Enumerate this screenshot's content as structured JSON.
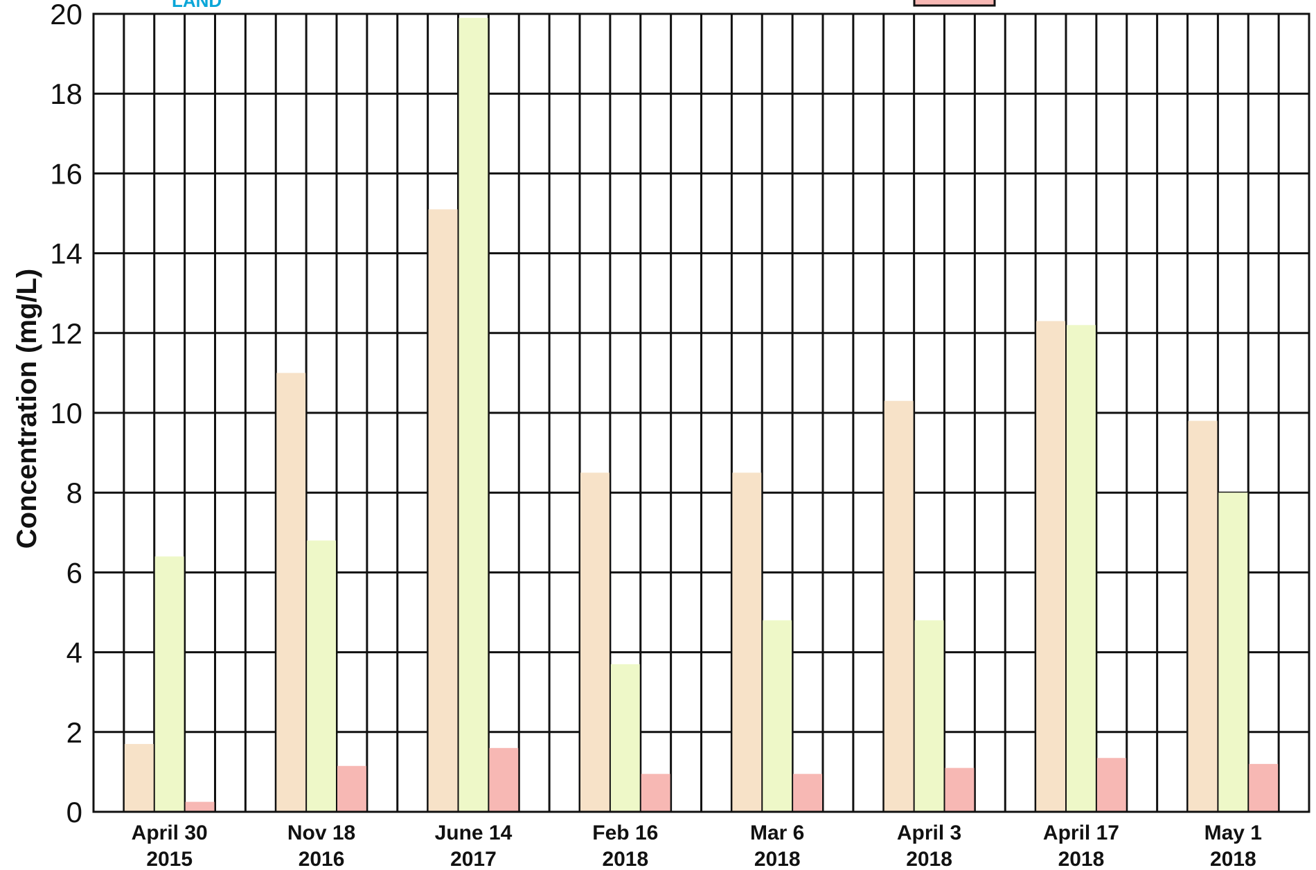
{
  "chart_data": {
    "type": "bar",
    "ylabel": "Concentration (mg/L)",
    "ylim": [
      0,
      20
    ],
    "y_ticks": [
      0,
      2,
      4,
      6,
      8,
      10,
      12,
      14,
      16,
      18,
      20
    ],
    "grid": true,
    "categories": [
      [
        "April 30",
        "2015"
      ],
      [
        "Nov 18",
        "2016"
      ],
      [
        "June 14",
        "2017"
      ],
      [
        "Feb 16",
        "2018"
      ],
      [
        "Mar 6",
        "2018"
      ],
      [
        "April 3",
        "2018"
      ],
      [
        "April 17",
        "2018"
      ],
      [
        "May 1",
        "2018"
      ]
    ],
    "series": [
      {
        "color": "#f7e2c8",
        "values": [
          1.7,
          11.0,
          15.1,
          8.5,
          8.5,
          10.3,
          12.3,
          9.8
        ]
      },
      {
        "color": "#eef8c8",
        "values": [
          6.4,
          6.8,
          19.9,
          3.7,
          4.8,
          4.8,
          12.2,
          8.0
        ]
      },
      {
        "color": "#f7b8b4",
        "values": [
          0.25,
          1.15,
          1.6,
          0.95,
          0.95,
          1.1,
          1.35,
          1.2
        ]
      }
    ],
    "legend": {
      "placement": "top-right",
      "swatch_color": "#f7b8b4",
      "fragment_text": "LAND"
    }
  }
}
